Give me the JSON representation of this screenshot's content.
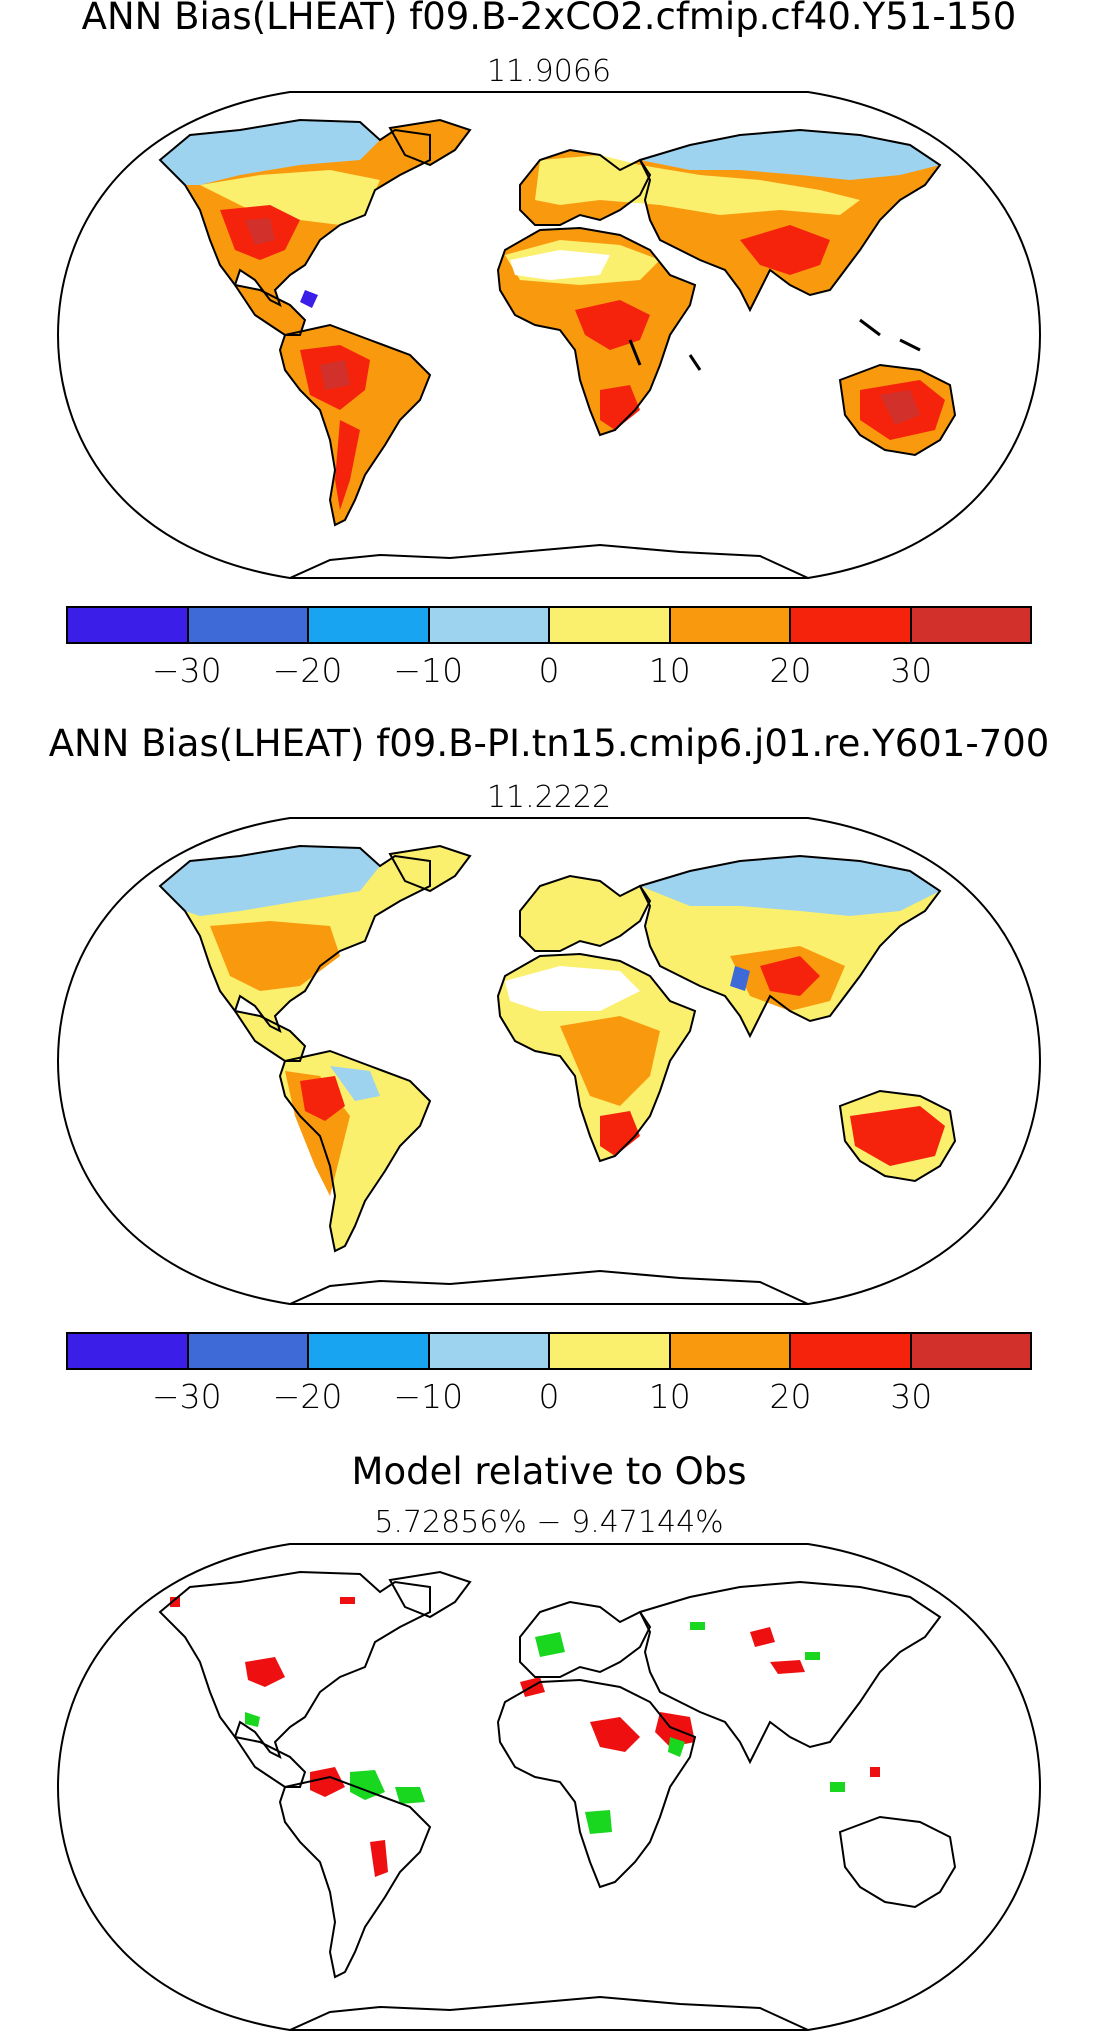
{
  "panels": [
    {
      "title": "ANN Bias(LHEAT) f09.B-2xCO2.cfmip.cf40.Y51-150",
      "subtitle": "11.9066"
    },
    {
      "title": "ANN Bias(LHEAT) f09.B-PI.tn15.cmip6.j01.re.Y601-700",
      "subtitle": "11.2222"
    },
    {
      "title": "Model relative to Obs",
      "subtitle": "5.72856% − 9.47144%"
    }
  ],
  "colorbar": {
    "colors": [
      "#3b1fe8",
      "#3e6ad8",
      "#19a4f2",
      "#9dd3ef",
      "#fbef6e",
      "#f99a0e",
      "#f5230c",
      "#d2302b"
    ],
    "ticks": [
      "−30",
      "−20",
      "−10",
      "0",
      "10",
      "20",
      "30"
    ]
  },
  "map_colors": {
    "ocean": "#ffffff",
    "coast": "#000000",
    "better": "#19d61f",
    "worse": "#ee1010"
  }
}
